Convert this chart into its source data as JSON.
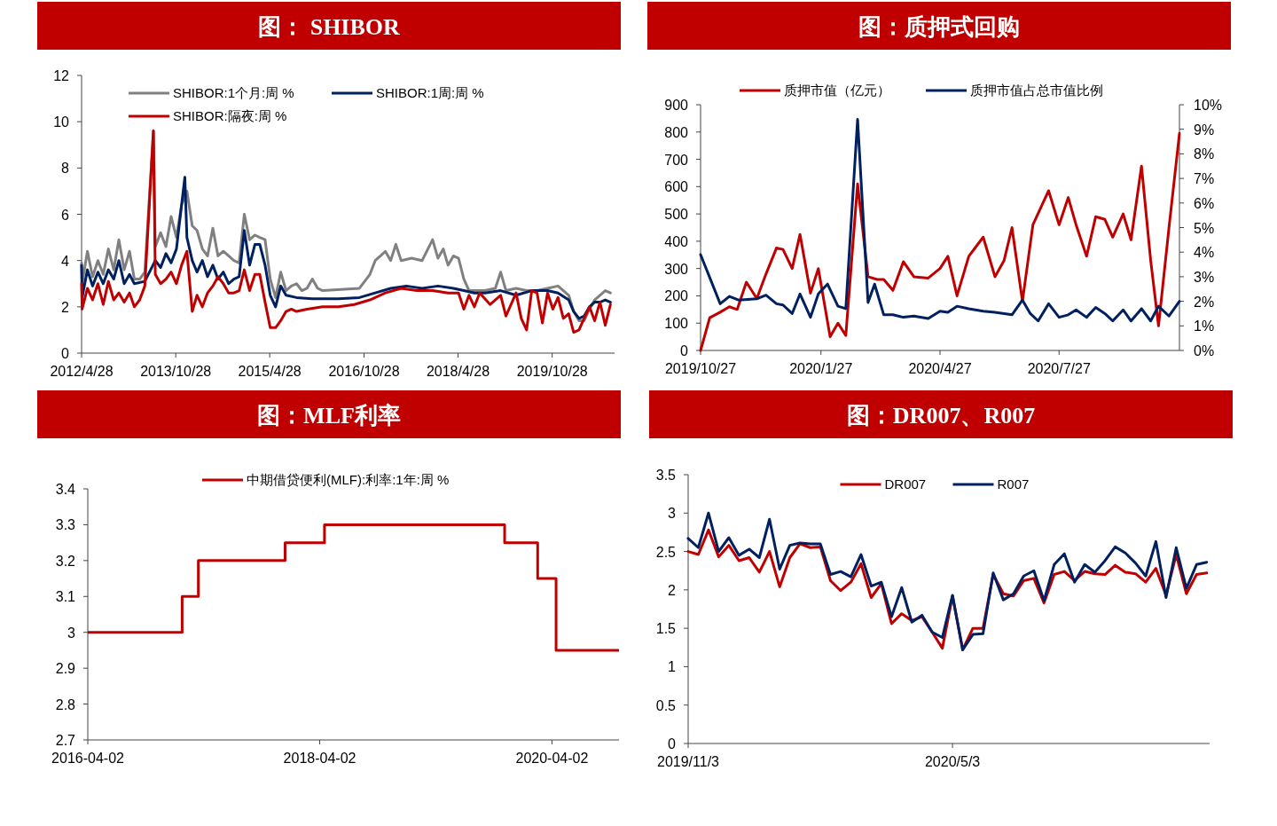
{
  "chart_data": [
    {
      "type": "line",
      "title": "图： SHIBOR",
      "legend": "top left",
      "line_style": "solid",
      "xlim": [
        "2012-04-28",
        "2020-10-25"
      ],
      "ylim": [
        0,
        12
      ],
      "yticks": [
        0,
        2,
        4,
        6,
        8,
        10,
        12
      ],
      "xticks": [
        {
          "value": "2012-04-28",
          "label": "2012/4/28"
        },
        {
          "value": "2013-10-28",
          "label": "2013/10/28"
        },
        {
          "value": "2015-04-28",
          "label": "2015/4/28"
        },
        {
          "value": "2016-10-28",
          "label": "2016/10/28"
        },
        {
          "value": "2018-04-28",
          "label": "2018/4/28"
        },
        {
          "value": "2019-10-28",
          "label": "2019/10/28"
        }
      ],
      "series": [
        {
          "name": "SHIBOR:1个月:周 %",
          "color": "#808080",
          "x": [
            "2012-04-28",
            "2012-05",
            "2012-06",
            "2012-07",
            "2012-08",
            "2012-09",
            "2012-10",
            "2012-11",
            "2012-12",
            "2013-01",
            "2013-02",
            "2013-03",
            "2013-04",
            "2013-05",
            "2013-06-20",
            "2013-07",
            "2013-08",
            "2013-09",
            "2013-10",
            "2013-11",
            "2013-12",
            "2014-01",
            "2014-02",
            "2014-03",
            "2014-04",
            "2014-05",
            "2014-06",
            "2014-07",
            "2014-08",
            "2014-09",
            "2014-10",
            "2014-11",
            "2014-12",
            "2015-01",
            "2015-02",
            "2015-03",
            "2015-04",
            "2015-05",
            "2015-06",
            "2015-07",
            "2015-08",
            "2015-09",
            "2015-10",
            "2015-11",
            "2015-12",
            "2016-01",
            "2016-02",
            "2016-03",
            "2016-10",
            "2016-12",
            "2017-01",
            "2017-02",
            "2017-03",
            "2017-04",
            "2017-05",
            "2017-06",
            "2017-08",
            "2017-10",
            "2017-12",
            "2018-01",
            "2018-02",
            "2018-03",
            "2018-04",
            "2018-05",
            "2018-06",
            "2018-07",
            "2018-08",
            "2018-10",
            "2018-12",
            "2019-01",
            "2019-02",
            "2019-04",
            "2019-06",
            "2019-08",
            "2019-10",
            "2019-12",
            "2020-01",
            "2020-02",
            "2020-03",
            "2020-04",
            "2020-05",
            "2020-06",
            "2020-07",
            "2020-08",
            "2020-09",
            "2020-10"
          ],
          "values": [
            3.9,
            3.0,
            4.4,
            3.3,
            4.0,
            3.4,
            4.5,
            3.6,
            4.9,
            3.6,
            4.4,
            3.2,
            3.2,
            3.5,
            9.6,
            4.6,
            5.2,
            4.6,
            5.9,
            5.0,
            6.4,
            7.0,
            5.5,
            5.3,
            4.5,
            4.2,
            5.4,
            4.2,
            4.4,
            4.2,
            4.0,
            3.9,
            6.0,
            4.9,
            5.1,
            5.0,
            4.9,
            3.2,
            2.4,
            3.5,
            2.7,
            2.9,
            3.0,
            2.7,
            2.8,
            3.2,
            2.8,
            2.7,
            2.8,
            3.4,
            4.0,
            4.2,
            4.4,
            4.0,
            4.7,
            4.0,
            4.1,
            4.0,
            4.9,
            4.1,
            4.5,
            3.8,
            4.2,
            4.1,
            3.2,
            2.7,
            2.7,
            2.7,
            2.8,
            3.5,
            2.7,
            2.8,
            2.7,
            2.7,
            2.8,
            2.9,
            2.7,
            2.5,
            1.8,
            1.4,
            1.4,
            1.9,
            2.3,
            2.5,
            2.7,
            2.6
          ]
        },
        {
          "name": "SHIBOR:1周:周 %",
          "color": "#002060",
          "x": [
            "2012-04-28",
            "2012-05",
            "2012-06",
            "2012-07",
            "2012-08",
            "2012-09",
            "2012-10",
            "2012-11",
            "2012-12",
            "2013-01",
            "2013-02",
            "2013-03",
            "2013-05",
            "2013-07",
            "2013-08",
            "2013-09",
            "2013-10",
            "2013-11",
            "2013-12-20",
            "2014-01",
            "2014-02",
            "2014-03",
            "2014-04",
            "2014-05",
            "2014-06",
            "2014-07",
            "2014-08",
            "2014-09",
            "2014-10",
            "2014-11",
            "2014-12",
            "2015-01",
            "2015-02",
            "2015-03",
            "2015-04",
            "2015-05",
            "2015-06",
            "2015-07",
            "2015-08",
            "2015-10",
            "2016-01",
            "2016-06",
            "2016-10",
            "2017-01",
            "2017-04",
            "2017-07",
            "2017-10",
            "2018-01",
            "2018-04",
            "2018-06",
            "2018-08",
            "2018-10",
            "2019-01",
            "2019-04",
            "2019-07",
            "2019-10",
            "2019-12",
            "2020-02",
            "2020-03",
            "2020-04",
            "2020-05",
            "2020-06",
            "2020-07",
            "2020-08",
            "2020-09",
            "2020-10"
          ],
          "values": [
            3.8,
            2.4,
            3.6,
            2.9,
            3.5,
            3.0,
            3.6,
            3.2,
            4.0,
            3.0,
            3.4,
            3.0,
            3.1,
            4.0,
            3.7,
            4.3,
            3.9,
            4.5,
            7.6,
            5.0,
            4.0,
            3.5,
            4.0,
            3.3,
            3.8,
            3.2,
            3.5,
            3.0,
            3.2,
            3.3,
            5.3,
            3.8,
            4.7,
            4.7,
            3.8,
            2.5,
            2.0,
            2.9,
            2.5,
            2.4,
            2.35,
            2.35,
            2.4,
            2.6,
            2.8,
            2.9,
            2.8,
            2.9,
            2.8,
            2.7,
            2.6,
            2.6,
            2.7,
            2.5,
            2.7,
            2.7,
            2.6,
            2.3,
            1.8,
            1.5,
            1.6,
            2.0,
            2.2,
            2.2,
            2.3,
            2.2
          ]
        },
        {
          "name": "SHIBOR:隔夜:周 %",
          "color": "#c00000",
          "x": [
            "2012-04-28",
            "2012-05",
            "2012-06",
            "2012-07",
            "2012-08",
            "2012-09",
            "2012-10",
            "2012-11",
            "2012-12",
            "2013-01",
            "2013-02",
            "2013-03",
            "2013-04",
            "2013-05",
            "2013-06-20",
            "2013-07",
            "2013-08",
            "2013-09",
            "2013-10",
            "2013-11",
            "2013-12",
            "2014-01",
            "2014-02",
            "2014-03",
            "2014-04",
            "2014-05",
            "2014-06",
            "2014-07",
            "2014-08",
            "2014-09",
            "2014-10",
            "2014-11",
            "2014-12",
            "2015-01",
            "2015-02",
            "2015-03",
            "2015-04",
            "2015-05",
            "2015-06",
            "2015-07",
            "2015-08",
            "2015-09",
            "2015-10",
            "2015-12",
            "2016-03",
            "2016-06",
            "2016-09",
            "2016-12",
            "2017-03",
            "2017-06",
            "2017-09",
            "2017-12",
            "2018-03",
            "2018-05",
            "2018-06",
            "2018-07",
            "2018-08",
            "2018-09",
            "2018-11",
            "2019-01",
            "2019-02",
            "2019-04",
            "2019-05",
            "2019-06",
            "2019-07",
            "2019-08",
            "2019-09",
            "2019-10",
            "2019-11",
            "2019-12",
            "2020-01",
            "2020-02",
            "2020-03",
            "2020-04",
            "2020-05",
            "2020-06",
            "2020-07",
            "2020-08",
            "2020-09",
            "2020-10"
          ],
          "values": [
            3.0,
            1.9,
            2.8,
            2.3,
            3.0,
            2.1,
            3.1,
            2.3,
            2.6,
            2.2,
            2.6,
            2.0,
            2.3,
            2.9,
            9.6,
            3.4,
            3.0,
            3.2,
            3.5,
            3.0,
            3.8,
            4.4,
            1.8,
            2.5,
            2.0,
            2.6,
            2.9,
            3.3,
            3.0,
            2.6,
            2.6,
            2.7,
            3.6,
            2.7,
            3.4,
            3.4,
            2.2,
            1.1,
            1.1,
            1.4,
            1.8,
            1.9,
            1.8,
            1.9,
            2.0,
            2.0,
            2.1,
            2.3,
            2.6,
            2.8,
            2.7,
            2.7,
            2.6,
            2.6,
            1.9,
            2.5,
            2.0,
            2.6,
            2.1,
            2.5,
            1.6,
            2.6,
            1.5,
            1.0,
            2.7,
            2.6,
            1.3,
            2.6,
            1.9,
            2.4,
            1.5,
            1.7,
            0.9,
            1.0,
            1.5,
            2.0,
            1.4,
            2.2,
            1.2,
            2.1
          ]
        }
      ]
    },
    {
      "type": "line",
      "title": "图：质押式回购",
      "legend": "top",
      "line_style": "solid",
      "xlim": [
        "2019-10-27",
        "2020-10-27"
      ],
      "ylim": [
        0,
        900
      ],
      "yticks": [
        0,
        100,
        200,
        300,
        400,
        500,
        600,
        700,
        800,
        900
      ],
      "y2lim": [
        0,
        10
      ],
      "y2ticks": [
        {
          "value": 0,
          "label": "0%"
        },
        {
          "value": 1,
          "label": "1%"
        },
        {
          "value": 2,
          "label": "2%"
        },
        {
          "value": 3,
          "label": "3%"
        },
        {
          "value": 4,
          "label": "4%"
        },
        {
          "value": 5,
          "label": "5%"
        },
        {
          "value": 6,
          "label": "6%"
        },
        {
          "value": 7,
          "label": "7%"
        },
        {
          "value": 8,
          "label": "8%"
        },
        {
          "value": 9,
          "label": "9%"
        },
        {
          "value": 10,
          "label": "10%"
        }
      ],
      "xticks": [
        {
          "value": "2019-10-27",
          "label": "2019/10/27"
        },
        {
          "value": "2020-01-27",
          "label": "2020/1/27"
        },
        {
          "value": "2020-04-27",
          "label": "2020/4/27"
        },
        {
          "value": "2020-07-27",
          "label": "2020/7/27"
        }
      ],
      "series": [
        {
          "name": "质押市值（亿元）",
          "color": "#c00000",
          "x": [
            "2019-10-27",
            "2019-11-03",
            "2019-11-11",
            "2019-11-18",
            "2019-11-24",
            "2019-12-01",
            "2019-12-09",
            "2019-12-16",
            "2019-12-24",
            "2019-12-29",
            "2020-01-05",
            "2020-01-11",
            "2020-01-19",
            "2020-01-25",
            "2020-02-03",
            "2020-02-09",
            "2020-02-15",
            "2020-02-24",
            "2020-03-03",
            "2020-03-10",
            "2020-03-15",
            "2020-03-22",
            "2020-03-30",
            "2020-04-07",
            "2020-04-18",
            "2020-04-27",
            "2020-05-03",
            "2020-05-10",
            "2020-05-19",
            "2020-05-30",
            "2020-06-08",
            "2020-06-15",
            "2020-06-21",
            "2020-06-29",
            "2020-07-07",
            "2020-07-19",
            "2020-07-27",
            "2020-08-03",
            "2020-08-09",
            "2020-08-17",
            "2020-08-24",
            "2020-08-31",
            "2020-09-06",
            "2020-09-14",
            "2020-09-20",
            "2020-09-28",
            "2020-10-05",
            "2020-10-11",
            "2020-10-19",
            "2020-10-27"
          ],
          "values": [
            0,
            120,
            140,
            160,
            150,
            250,
            190,
            280,
            375,
            370,
            300,
            425,
            210,
            300,
            50,
            100,
            55,
            610,
            270,
            260,
            260,
            220,
            325,
            270,
            265,
            300,
            345,
            200,
            345,
            415,
            270,
            330,
            450,
            180,
            460,
            585,
            460,
            560,
            460,
            345,
            490,
            480,
            415,
            500,
            405,
            675,
            330,
            90,
            450,
            795
          ]
        },
        {
          "name": "质押市值占总市值比例",
          "color": "#002060",
          "axis": "y2",
          "x": [
            "2019-10-27",
            "2019-11-11",
            "2019-11-18",
            "2019-11-25",
            "2019-12-09",
            "2019-12-16",
            "2019-12-24",
            "2019-12-29",
            "2020-01-05",
            "2020-01-11",
            "2020-01-19",
            "2020-01-25",
            "2020-02-01",
            "2020-02-09",
            "2020-02-15",
            "2020-02-24",
            "2020-03-03",
            "2020-03-08",
            "2020-03-15",
            "2020-03-22",
            "2020-03-30",
            "2020-04-07",
            "2020-04-18",
            "2020-04-27",
            "2020-05-03",
            "2020-05-10",
            "2020-05-19",
            "2020-05-30",
            "2020-06-08",
            "2020-06-21",
            "2020-06-29",
            "2020-07-05",
            "2020-07-11",
            "2020-07-19",
            "2020-07-27",
            "2020-08-03",
            "2020-08-09",
            "2020-08-17",
            "2020-08-24",
            "2020-08-31",
            "2020-09-06",
            "2020-09-14",
            "2020-09-20",
            "2020-09-28",
            "2020-10-05",
            "2020-10-11",
            "2020-10-19",
            "2020-10-27"
          ],
          "values": [
            3.9,
            1.9,
            2.2,
            2.05,
            2.1,
            2.25,
            1.9,
            1.85,
            1.5,
            2.3,
            1.35,
            2.3,
            2.7,
            1.8,
            1.7,
            9.4,
            1.95,
            2.7,
            1.45,
            1.45,
            1.35,
            1.4,
            1.3,
            1.6,
            1.55,
            1.8,
            1.7,
            1.6,
            1.55,
            1.45,
            2.05,
            1.5,
            1.2,
            1.9,
            1.35,
            1.45,
            1.65,
            1.35,
            1.75,
            1.5,
            1.2,
            1.65,
            1.2,
            1.7,
            1.2,
            1.8,
            1.4,
            2.0
          ]
        }
      ]
    },
    {
      "type": "step",
      "title": "图：MLF利率",
      "legend": "top",
      "line_style": "solid",
      "xlim": [
        "2016-04-02",
        "2020-10-30"
      ],
      "ylim": [
        2.7,
        3.4
      ],
      "yticks": [
        2.7,
        2.8,
        2.9,
        3,
        3.1,
        3.2,
        3.3,
        3.4
      ],
      "xticks": [
        {
          "value": "2016-04-02",
          "label": "2016-04-02"
        },
        {
          "value": "2018-04-02",
          "label": "2018-04-02"
        },
        {
          "value": "2020-04-02",
          "label": "2020-04-02"
        }
      ],
      "series": [
        {
          "name": "中期借贷便利(MLF):利率:1年:周 %",
          "color": "#c00000",
          "x": [
            "2016-04-02",
            "2017-01-24",
            "2017-03-16",
            "2017-12-14",
            "2018-04-17",
            "2019-11-05",
            "2020-02-17",
            "2020-04-15",
            "2020-10-30"
          ],
          "values": [
            3.0,
            3.1,
            3.2,
            3.25,
            3.3,
            3.25,
            3.15,
            2.95,
            2.95
          ]
        }
      ]
    },
    {
      "type": "line",
      "title": "图：DR007、R007",
      "legend": "top",
      "line_style": "solid",
      "xlim": [
        "2019-11-03",
        "2020-10-27"
      ],
      "ylim": [
        0,
        3.5
      ],
      "yticks": [
        0,
        0.5,
        1,
        1.5,
        2,
        2.5,
        3,
        3.5
      ],
      "xticks": [
        {
          "value": "2019-11-03",
          "label": "2019/11/3"
        },
        {
          "value": "2020-05-03",
          "label": "2020/5/3"
        }
      ],
      "x": [
        "2019-11-03",
        "2019-11-10",
        "2019-11-17",
        "2019-11-24",
        "2019-12-01",
        "2019-12-08",
        "2019-12-15",
        "2019-12-22",
        "2019-12-29",
        "2020-01-05",
        "2020-01-12",
        "2020-01-19",
        "2020-01-26",
        "2020-02-02",
        "2020-02-09",
        "2020-02-16",
        "2020-02-23",
        "2020-03-01",
        "2020-03-08",
        "2020-03-15",
        "2020-03-22",
        "2020-03-29",
        "2020-04-05",
        "2020-04-12",
        "2020-04-19",
        "2020-04-26",
        "2020-05-03",
        "2020-05-10",
        "2020-05-17",
        "2020-05-24",
        "2020-05-31",
        "2020-06-07",
        "2020-06-14",
        "2020-06-21",
        "2020-06-28",
        "2020-07-05",
        "2020-07-12",
        "2020-07-19",
        "2020-07-26",
        "2020-08-02",
        "2020-08-09",
        "2020-08-16",
        "2020-08-23",
        "2020-08-30",
        "2020-09-06",
        "2020-09-13",
        "2020-09-20",
        "2020-09-27",
        "2020-10-04",
        "2020-10-11",
        "2020-10-18",
        "2020-10-25"
      ],
      "series": [
        {
          "name": "DR007",
          "color": "#c00000",
          "values": [
            2.5,
            2.46,
            2.78,
            2.43,
            2.58,
            2.38,
            2.42,
            2.23,
            2.5,
            2.04,
            2.42,
            2.6,
            2.55,
            2.56,
            2.12,
            1.99,
            2.1,
            2.34,
            1.9,
            2.08,
            1.56,
            1.69,
            1.6,
            1.65,
            1.45,
            1.24,
            1.92,
            1.22,
            1.5,
            1.5,
            2.2,
            1.95,
            1.92,
            2.12,
            2.15,
            1.83,
            2.2,
            2.24,
            2.12,
            2.24,
            2.21,
            2.2,
            2.32,
            2.23,
            2.21,
            2.1,
            2.28,
            1.93,
            2.46,
            1.95,
            2.2,
            2.22
          ]
        },
        {
          "name": "R007",
          "color": "#002060",
          "values": [
            2.67,
            2.55,
            3.0,
            2.5,
            2.68,
            2.45,
            2.53,
            2.42,
            2.92,
            2.27,
            2.58,
            2.61,
            2.6,
            2.6,
            2.2,
            2.24,
            2.17,
            2.46,
            2.05,
            2.1,
            1.65,
            2.03,
            1.58,
            1.67,
            1.45,
            1.38,
            1.93,
            1.22,
            1.42,
            1.43,
            2.22,
            1.87,
            1.95,
            2.18,
            2.25,
            1.86,
            2.33,
            2.47,
            2.1,
            2.33,
            2.23,
            2.38,
            2.56,
            2.48,
            2.35,
            2.18,
            2.63,
            1.9,
            2.55,
            2.02,
            2.33,
            2.36
          ]
        }
      ]
    }
  ]
}
